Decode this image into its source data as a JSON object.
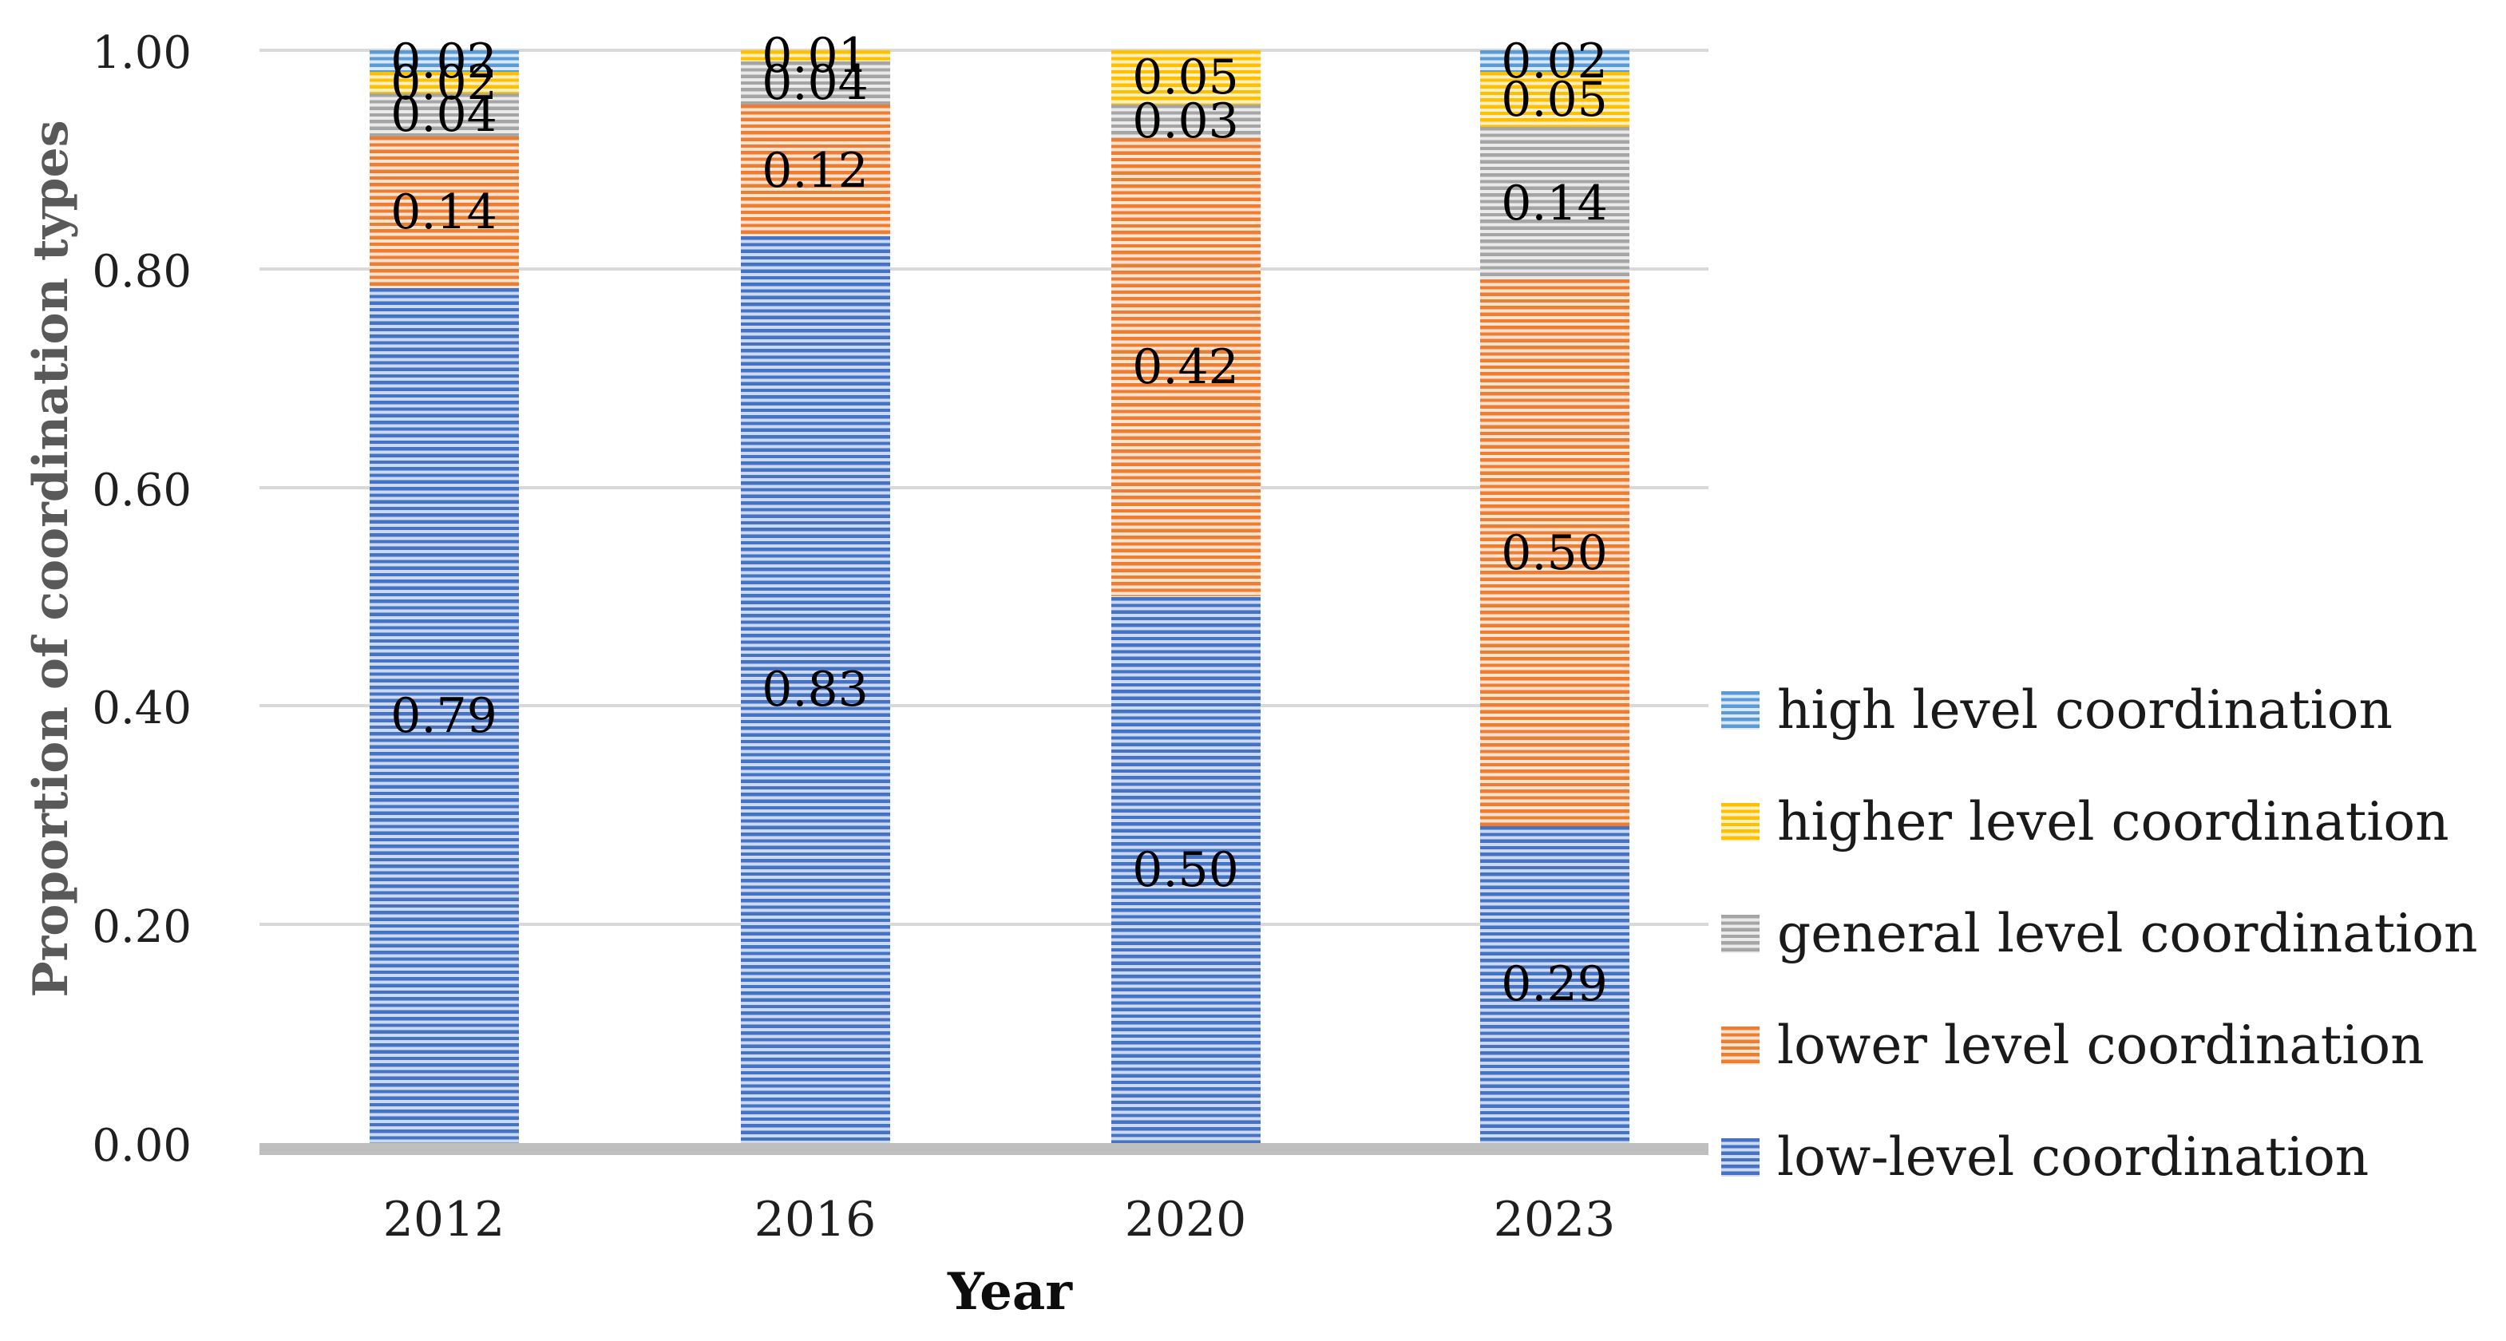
{
  "colors": {
    "background": "#FFFFFF",
    "gridline": "#D9D9D9",
    "axis_line": "#BFBFBF",
    "axis_title_text": "#595959",
    "tick_text": "#1F1F1F",
    "data_label_text": "#000000",
    "legend_text": "#1A1A1A"
  },
  "chart_data": {
    "type": "bar",
    "stacked": true,
    "title": "",
    "xlabel": "Year",
    "ylabel": "Proportion of coordination types",
    "categories": [
      "2012",
      "2016",
      "2020",
      "2023"
    ],
    "series": [
      {
        "name": "low-level coordination",
        "color": "#4472C4",
        "tint": "#cdd9f0",
        "values": [
          0.79,
          0.83,
          0.5,
          0.29
        ],
        "labels": [
          "0.79",
          "0.83",
          "0.50",
          "0.29"
        ]
      },
      {
        "name": "lower level coordination",
        "color": "#ED7D31",
        "tint": "#fbe3d2",
        "values": [
          0.14,
          0.12,
          0.42,
          0.5
        ],
        "labels": [
          "0.14",
          "0.12",
          "0.42",
          "0.50"
        ]
      },
      {
        "name": "general level coordination",
        "color": "#A5A5A5",
        "tint": "#eaeaea",
        "values": [
          0.04,
          0.04,
          0.03,
          0.14
        ],
        "labels": [
          "0.04",
          "0.04",
          "0.03",
          "0.14"
        ]
      },
      {
        "name": "higher level coordination",
        "color": "#FFC000",
        "tint": "#ffefc4",
        "values": [
          0.02,
          0.01,
          0.05,
          0.05
        ],
        "labels": [
          "0.02",
          "0.01",
          "0.05",
          "0.05"
        ]
      },
      {
        "name": "high level coordination",
        "color": "#5B9BD5",
        "tint": "#d9e8f6",
        "values": [
          0.02,
          0,
          0,
          0.02
        ],
        "labels": [
          "0.02",
          "",
          "",
          "0.02"
        ]
      }
    ],
    "ylim": [
      0,
      1
    ],
    "yticks": [
      {
        "value": 0.0,
        "label": "0.00"
      },
      {
        "value": 0.2,
        "label": "0.20"
      },
      {
        "value": 0.4,
        "label": "0.40"
      },
      {
        "value": 0.6,
        "label": "0.60"
      },
      {
        "value": 0.8,
        "label": "0.80"
      },
      {
        "value": 1.0,
        "label": "1.00"
      }
    ],
    "grid": true,
    "legend_position": "right",
    "legend_order": [
      4,
      3,
      2,
      1,
      0
    ]
  }
}
